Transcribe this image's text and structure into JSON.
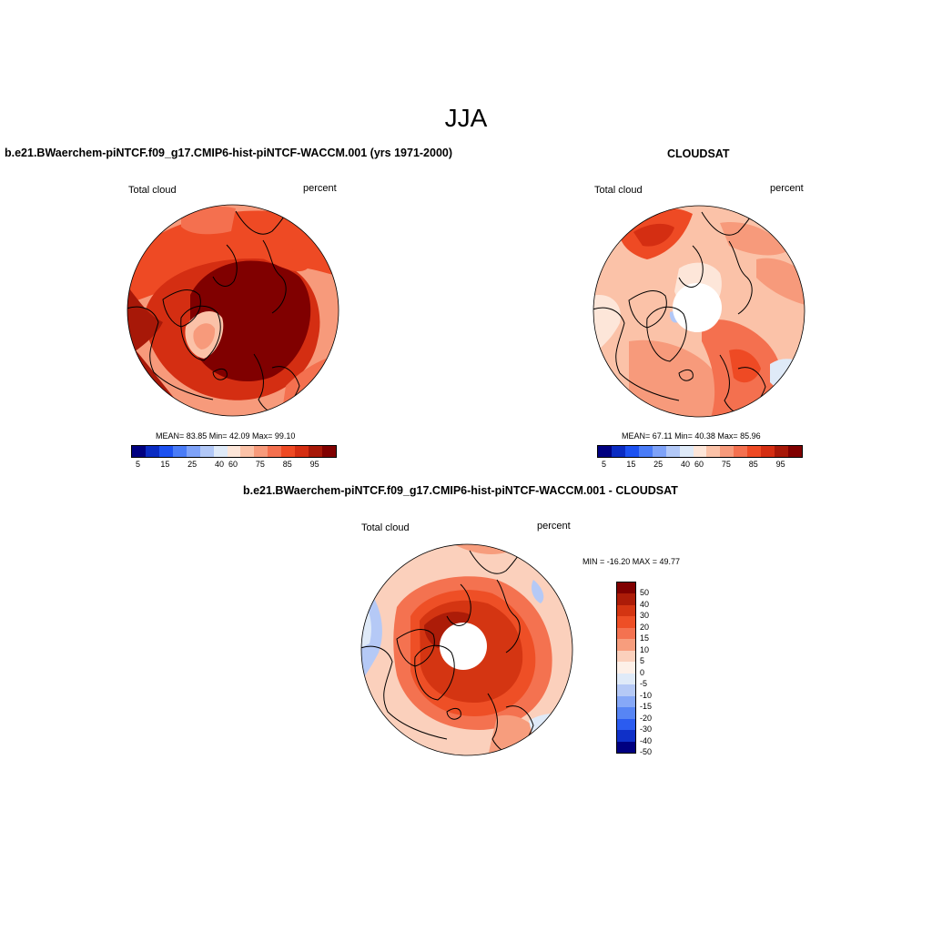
{
  "figure": {
    "season": "JJA"
  },
  "panel_model": {
    "title": "b.e21.BWaerchem-piNTCF.f09_g17.CMIP6-hist-piNTCF-WACCM.001 (yrs 1971-2000)",
    "variable": "Total cloud",
    "units": "percent",
    "stats": "MEAN=  83.85  Min=  42.09  Max=  99.10",
    "colorbar_labels": [
      "5",
      "15",
      "25",
      "40",
      "60",
      "75",
      "85",
      "95"
    ]
  },
  "panel_obs": {
    "title": "CLOUDSAT",
    "variable": "Total cloud",
    "units": "percent",
    "stats": "MEAN=  67.11  Min=  40.38  Max=  85.96",
    "colorbar_labels": [
      "5",
      "15",
      "25",
      "40",
      "60",
      "75",
      "85",
      "95"
    ]
  },
  "panel_diff": {
    "title": "b.e21.BWaerchem-piNTCF.f09_g17.CMIP6-hist-piNTCF-WACCM.001 - CLOUDSAT",
    "variable": "Total cloud",
    "units": "percent",
    "minmax": "MIN = -16.20 MAX =  49.77",
    "colorbar_labels": [
      "50",
      "40",
      "30",
      "20",
      "15",
      "10",
      "5",
      "0",
      "-5",
      "-10",
      "-15",
      "-20",
      "-30",
      "-40",
      "-50"
    ]
  },
  "colors": {
    "seq_scale": [
      "#000080",
      "#0a2bc2",
      "#1c51f1",
      "#4a7cf7",
      "#7ea2f8",
      "#b2c8f7",
      "#dfeaf8",
      "#fde6d9",
      "#fbc2a8",
      "#f79a7b",
      "#f4704f",
      "#ee4a24",
      "#d42e12",
      "#a71808",
      "#800000"
    ],
    "div_scale": [
      "#800000",
      "#ac1c08",
      "#d43512",
      "#ee4f26",
      "#f47250",
      "#f79d7d",
      "#fbd0bc",
      "#fdf0e8",
      "#dfeaf8",
      "#b5c9f6",
      "#86a8f7",
      "#5785f4",
      "#2b5cf0",
      "#0f30c8",
      "#000080"
    ]
  }
}
